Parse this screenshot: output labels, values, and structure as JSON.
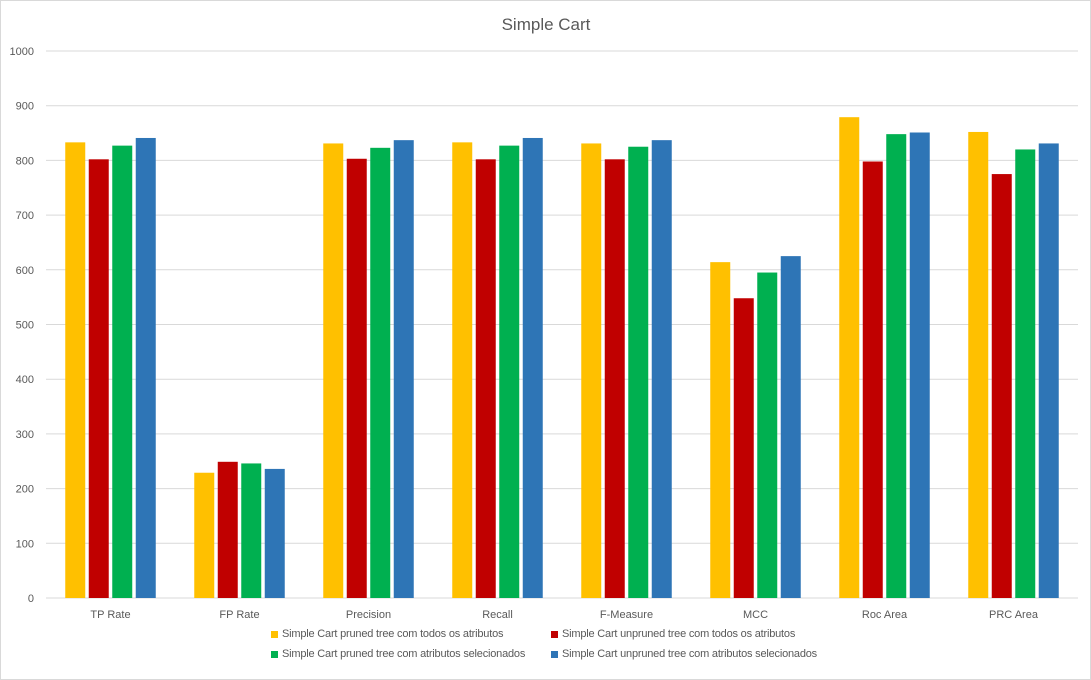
{
  "chart_data": {
    "type": "bar",
    "title": "Simple Cart",
    "xlabel": "",
    "ylabel": "",
    "ylim": [
      0,
      1000
    ],
    "yticks": [
      0,
      100,
      200,
      300,
      400,
      500,
      600,
      700,
      800,
      900,
      1000
    ],
    "grid": true,
    "legend_position": "bottom",
    "categories": [
      "TP Rate",
      "FP Rate",
      "Precision",
      "Recall",
      "F-Measure",
      "MCC",
      "Roc Area",
      "PRC Area"
    ],
    "series": [
      {
        "name": "Simple Cart pruned tree com todos os atributos",
        "color": "#ffc000",
        "values": [
          833,
          229,
          831,
          833,
          831,
          614,
          879,
          852
        ]
      },
      {
        "name": "Simple Cart unpruned tree com todos os atributos",
        "color": "#c00000",
        "values": [
          802,
          249,
          803,
          802,
          802,
          548,
          798,
          775
        ]
      },
      {
        "name": "Simple Cart pruned tree com atributos selecionados",
        "color": "#00b050",
        "values": [
          827,
          246,
          823,
          827,
          825,
          595,
          848,
          820
        ]
      },
      {
        "name": "Simple Cart unpruned tree com atributos selecionados",
        "color": "#2e75b6",
        "values": [
          841,
          236,
          837,
          841,
          837,
          625,
          851,
          831
        ]
      }
    ]
  }
}
